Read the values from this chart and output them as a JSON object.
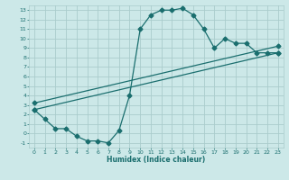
{
  "xlabel": "Humidex (Indice chaleur)",
  "bg_color": "#cce8e8",
  "grid_color": "#aacccc",
  "line_color": "#1a6e6e",
  "xlim": [
    -0.5,
    23.5
  ],
  "ylim": [
    -1.5,
    13.5
  ],
  "xticks": [
    0,
    1,
    2,
    3,
    4,
    5,
    6,
    7,
    8,
    9,
    10,
    11,
    12,
    13,
    14,
    15,
    16,
    17,
    18,
    19,
    20,
    21,
    22,
    23
  ],
  "yticks": [
    -1,
    0,
    1,
    2,
    3,
    4,
    5,
    6,
    7,
    8,
    9,
    10,
    11,
    12,
    13
  ],
  "line1_x": [
    0,
    1,
    2,
    3,
    4,
    5,
    6,
    7,
    8,
    9,
    10,
    11,
    12,
    13,
    14,
    15,
    16,
    17,
    18,
    19,
    20,
    21,
    22,
    23
  ],
  "line1_y": [
    2.5,
    1.5,
    0.5,
    0.5,
    -0.3,
    -0.8,
    -0.8,
    -1.0,
    0.3,
    4.0,
    11.0,
    12.5,
    13.0,
    13.0,
    13.2,
    12.5,
    11.0,
    9.0,
    10.0,
    9.5,
    9.5,
    8.5,
    8.5,
    8.5
  ],
  "line2_x": [
    0,
    23
  ],
  "line2_y": [
    2.5,
    8.5
  ],
  "line3_x": [
    0,
    23
  ],
  "line3_y": [
    3.2,
    9.2
  ]
}
